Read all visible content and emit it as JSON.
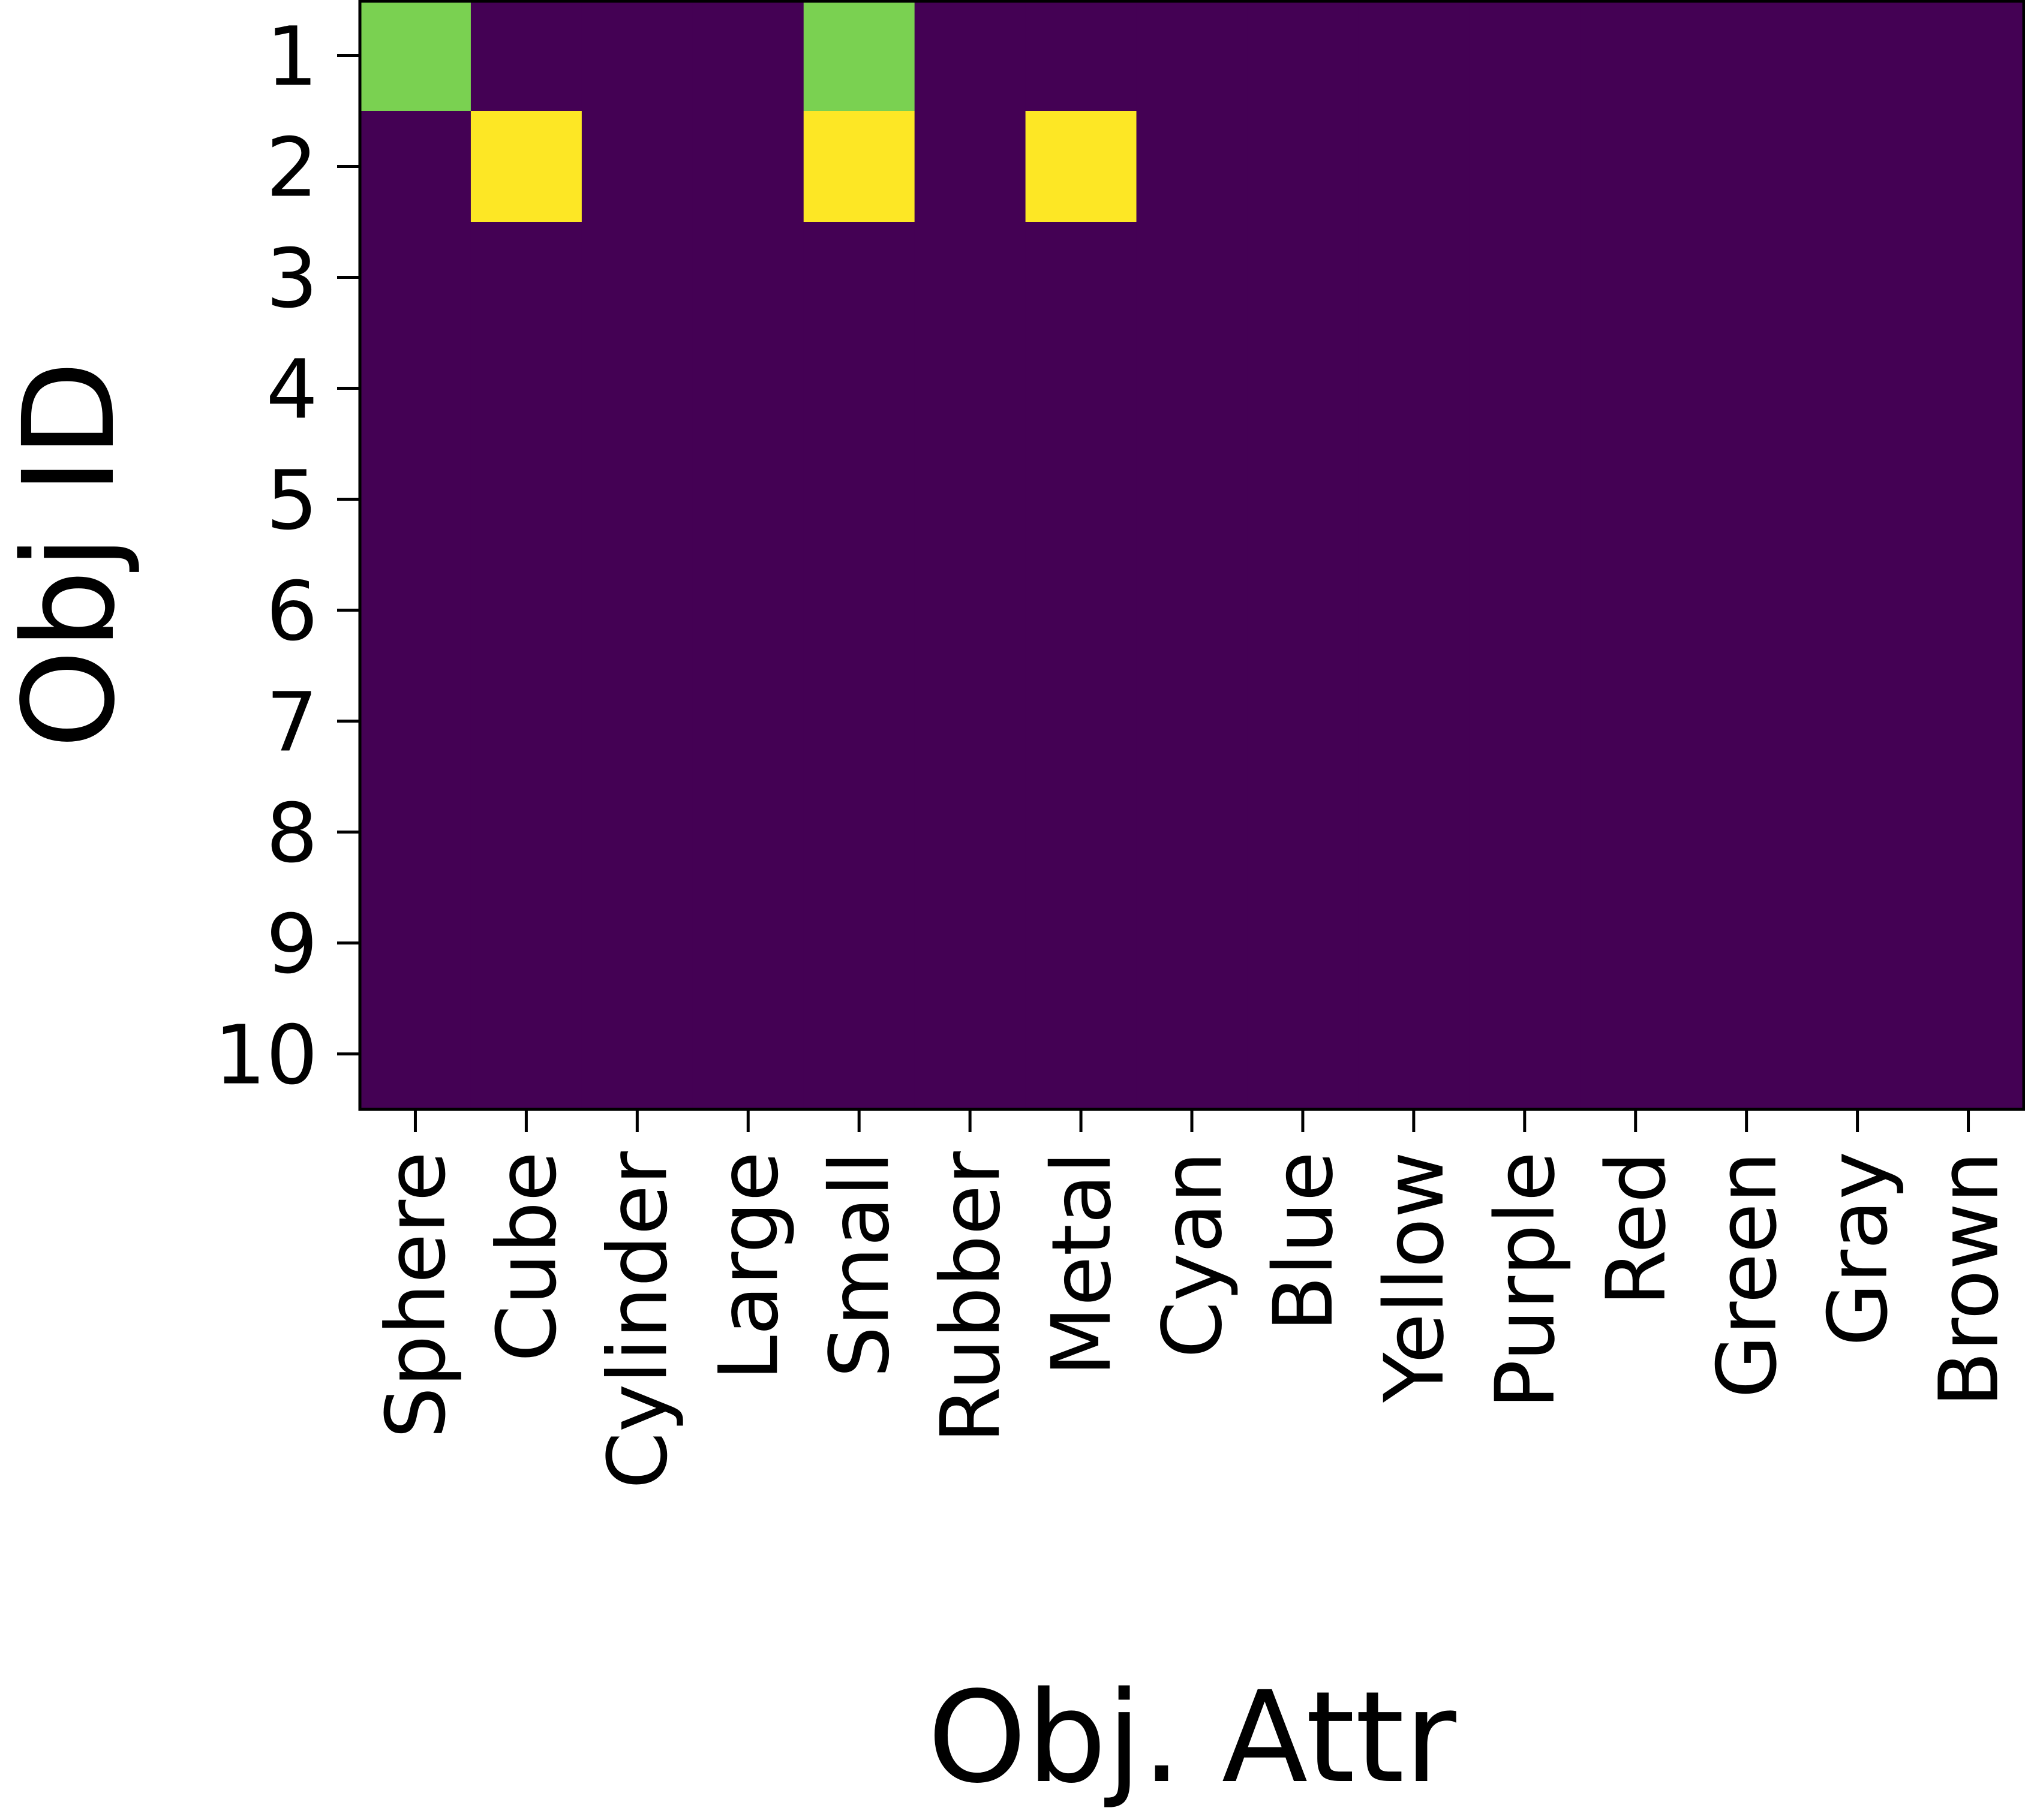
{
  "chart_data": {
    "type": "heatmap",
    "xlabel": "Obj. Attr",
    "ylabel": "Obj ID",
    "x_categories": [
      "Sphere",
      "Cube",
      "Cylinder",
      "Large",
      "Small",
      "Rubber",
      "Metal",
      "Cyan",
      "Blue",
      "Yellow",
      "Purple",
      "Red",
      "Green",
      "Gray",
      "Brown"
    ],
    "y_categories": [
      "1",
      "2",
      "3",
      "4",
      "5",
      "6",
      "7",
      "8",
      "9",
      "10"
    ],
    "values": [
      [
        0.8,
        0,
        0,
        0,
        0.8,
        0,
        0,
        0,
        0,
        0,
        0,
        0,
        0,
        0,
        0
      ],
      [
        0,
        1,
        0,
        0,
        1,
        0,
        1,
        0,
        0,
        0,
        0,
        0,
        0,
        0,
        0
      ],
      [
        0,
        0,
        0,
        0,
        0,
        0,
        0,
        0,
        0,
        0,
        0,
        0,
        0,
        0,
        0
      ],
      [
        0,
        0,
        0,
        0,
        0,
        0,
        0,
        0,
        0,
        0,
        0,
        0,
        0,
        0,
        0
      ],
      [
        0,
        0,
        0,
        0,
        0,
        0,
        0,
        0,
        0,
        0,
        0,
        0,
        0,
        0,
        0
      ],
      [
        0,
        0,
        0,
        0,
        0,
        0,
        0,
        0,
        0,
        0,
        0,
        0,
        0,
        0,
        0
      ],
      [
        0,
        0,
        0,
        0,
        0,
        0,
        0,
        0,
        0,
        0,
        0,
        0,
        0,
        0,
        0
      ],
      [
        0,
        0,
        0,
        0,
        0,
        0,
        0,
        0,
        0,
        0,
        0,
        0,
        0,
        0,
        0
      ],
      [
        0,
        0,
        0,
        0,
        0,
        0,
        0,
        0,
        0,
        0,
        0,
        0,
        0,
        0,
        0
      ],
      [
        0,
        0,
        0,
        0,
        0,
        0,
        0,
        0,
        0,
        0,
        0,
        0,
        0,
        0,
        0
      ]
    ],
    "vmin": 0,
    "vmax": 1,
    "colormap": "viridis",
    "colors": {
      "low": "#440154",
      "mid_high": "#7ad151",
      "high": "#fde725"
    },
    "grid": false,
    "legend": "none"
  }
}
